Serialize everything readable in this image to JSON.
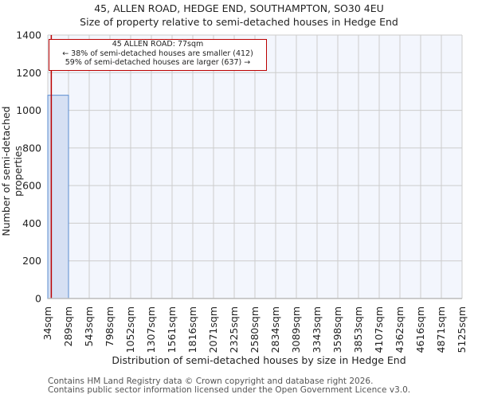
{
  "title": "45, ALLEN ROAD, HEDGE END, SOUTHAMPTON, SO30 4EU",
  "subtitle": "Size of property relative to semi-detached houses in Hedge End",
  "annotation": {
    "line1": "45 ALLEN ROAD: 77sqm",
    "line2": "← 38% of semi-detached houses are smaller (412)",
    "line3": "59% of semi-detached houses are larger (637) →"
  },
  "footer": {
    "line1": "Contains HM Land Registry data © Crown copyright and database right 2026.",
    "line2": "Contains public sector information licensed under the Open Government Licence v3.0."
  },
  "colors": {
    "bar_fill": "#d6e0f3",
    "bar_edge": "#5b8ccf",
    "marker": "#bb0000",
    "plot_bg": "#f3f6fd",
    "grid": "#cccccc"
  },
  "chart_data": {
    "type": "bar",
    "title": "45, ALLEN ROAD, HEDGE END, SOUTHAMPTON, SO30 4EU",
    "subtitle": "Size of property relative to semi-detached houses in Hedge End",
    "xlabel": "Distribution of semi-detached houses by size in Hedge End",
    "ylabel": "Number of semi-detached properties",
    "ylim": [
      0,
      1400
    ],
    "yticks": [
      0,
      200,
      400,
      600,
      800,
      1000,
      1200,
      1400
    ],
    "grid": true,
    "bin_edges": [
      "34sqm",
      "289sqm",
      "543sqm",
      "798sqm",
      "1052sqm",
      "1307sqm",
      "1561sqm",
      "1816sqm",
      "2071sqm",
      "2325sqm",
      "2580sqm",
      "2834sqm",
      "3089sqm",
      "3343sqm",
      "3598sqm",
      "3853sqm",
      "4107sqm",
      "4362sqm",
      "4616sqm",
      "4871sqm",
      "5125sqm"
    ],
    "values": [
      1080,
      0,
      0,
      0,
      0,
      0,
      0,
      0,
      0,
      0,
      0,
      0,
      0,
      0,
      0,
      0,
      0,
      0,
      0,
      0
    ],
    "marker": {
      "label": "45 ALLEN ROAD",
      "value_sqm": 77,
      "smaller_pct": 38,
      "smaller_count": 412,
      "larger_pct": 59,
      "larger_count": 637
    }
  }
}
